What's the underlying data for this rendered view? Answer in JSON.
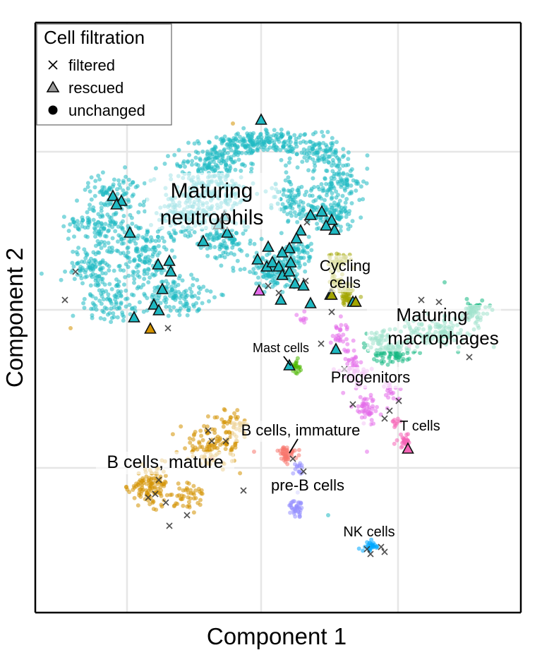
{
  "chart_data": {
    "type": "scatter",
    "title": "",
    "xlabel": "Component 1",
    "ylabel": "Component 2",
    "grid": true,
    "ticks_shown": false,
    "legend": {
      "title": "Cell filtration",
      "placement": "top-left",
      "entries": [
        {
          "label": "filtered",
          "shape": "x-icon"
        },
        {
          "label": "rescued",
          "shape": "triangle-icon"
        },
        {
          "label": "unchanged",
          "shape": "circle-icon"
        }
      ]
    },
    "clusters": [
      {
        "name": "Maturing neutrophils",
        "color": "#1fb9c2"
      },
      {
        "name": "Cycling cells",
        "color": "#a3a500"
      },
      {
        "name": "Maturing macrophages",
        "color": "#14b882"
      },
      {
        "name": "Mast cells",
        "color": "#4cb800"
      },
      {
        "name": "Progenitors",
        "color": "#e36be9"
      },
      {
        "name": "T cells",
        "color": "#f564b6"
      },
      {
        "name": "B cells, immature",
        "color": "#f8766d"
      },
      {
        "name": "B cells, mature",
        "color": "#d39200"
      },
      {
        "name": "pre-B cells",
        "color": "#9590ff"
      },
      {
        "name": "NK cells",
        "color": "#00a8ff"
      }
    ]
  }
}
